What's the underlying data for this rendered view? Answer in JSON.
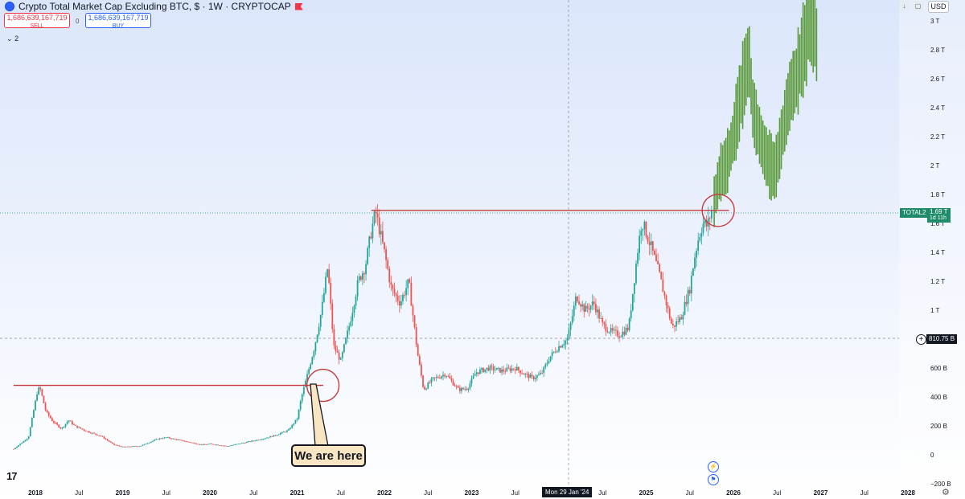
{
  "header": {
    "title": "Crypto Total Market Cap Excluding BTC, $ · 1W · CRYPTOCAP",
    "sell_price": "1,686,639,167,719",
    "sell_label": "SELL",
    "buy_price": "1,686,639,167,719",
    "buy_label": "BUY",
    "spread": "0",
    "indicator_count": "2",
    "currency": "USD"
  },
  "tags": {
    "symbol": "TOTAL2",
    "last_price": "1.69 T",
    "countdown": "1d 11h",
    "crosshair_price": "810.75 B",
    "crosshair_date": "Mon 29 Jan '24"
  },
  "annotation": {
    "callout": "We are here"
  },
  "branding": {
    "logo": "17"
  },
  "colors": {
    "up": "#26a69a",
    "down": "#ef5350",
    "projection": "#5a9a3a",
    "level_line": "#c53b3b",
    "circle": "#c53b3b"
  },
  "chart_data": {
    "type": "candlestick",
    "title": "Crypto Total Market Cap Excluding BTC, $ · 1W · CRYPTOCAP",
    "xlabel": "",
    "ylabel": "",
    "x_ticks": [
      "2018",
      "Jul",
      "2019",
      "Jul",
      "2020",
      "Jul",
      "2021",
      "Jul",
      "2022",
      "Jul",
      "2023",
      "Jul",
      "2024",
      "Jul",
      "2025",
      "Jul",
      "2026",
      "Jul",
      "2027",
      "Jul",
      "2028"
    ],
    "y_ticks": [
      "−200 B",
      "0",
      "200 B",
      "400 B",
      "600 B",
      "800 B",
      "1 T",
      "1.2 T",
      "1.4 T",
      "1.6 T",
      "1.8 T",
      "2 T",
      "2.2 T",
      "2.4 T",
      "2.6 T",
      "2.8 T",
      "3 T"
    ],
    "y_range_billions": [
      -200,
      3100
    ],
    "x_range_years": [
      2017.7,
      2028.3
    ],
    "series": [
      {
        "kind": "historical_weekly_candles",
        "points": [
          {
            "date": 2017.75,
            "value": 40
          },
          {
            "date": 2017.92,
            "value": 120
          },
          {
            "date": 2018.02,
            "value": 430
          },
          {
            "date": 2018.05,
            "value": 470
          },
          {
            "date": 2018.12,
            "value": 300
          },
          {
            "date": 2018.2,
            "value": 230
          },
          {
            "date": 2018.3,
            "value": 180
          },
          {
            "date": 2018.38,
            "value": 240
          },
          {
            "date": 2018.45,
            "value": 200
          },
          {
            "date": 2018.6,
            "value": 160
          },
          {
            "date": 2018.75,
            "value": 130
          },
          {
            "date": 2018.9,
            "value": 70
          },
          {
            "date": 2019.0,
            "value": 55
          },
          {
            "date": 2019.2,
            "value": 60
          },
          {
            "date": 2019.4,
            "value": 110
          },
          {
            "date": 2019.5,
            "value": 120
          },
          {
            "date": 2019.7,
            "value": 95
          },
          {
            "date": 2019.9,
            "value": 70
          },
          {
            "date": 2020.0,
            "value": 75
          },
          {
            "date": 2020.2,
            "value": 60
          },
          {
            "date": 2020.4,
            "value": 85
          },
          {
            "date": 2020.6,
            "value": 110
          },
          {
            "date": 2020.75,
            "value": 135
          },
          {
            "date": 2020.9,
            "value": 170
          },
          {
            "date": 2021.0,
            "value": 250
          },
          {
            "date": 2021.05,
            "value": 400
          },
          {
            "date": 2021.12,
            "value": 560
          },
          {
            "date": 2021.2,
            "value": 750
          },
          {
            "date": 2021.28,
            "value": 1000
          },
          {
            "date": 2021.35,
            "value": 1300
          },
          {
            "date": 2021.42,
            "value": 750
          },
          {
            "date": 2021.5,
            "value": 650
          },
          {
            "date": 2021.6,
            "value": 900
          },
          {
            "date": 2021.7,
            "value": 1200
          },
          {
            "date": 2021.78,
            "value": 1300
          },
          {
            "date": 2021.85,
            "value": 1550
          },
          {
            "date": 2021.9,
            "value": 1680
          },
          {
            "date": 2022.0,
            "value": 1400
          },
          {
            "date": 2022.08,
            "value": 1150
          },
          {
            "date": 2022.18,
            "value": 1050
          },
          {
            "date": 2022.28,
            "value": 1200
          },
          {
            "date": 2022.38,
            "value": 700
          },
          {
            "date": 2022.45,
            "value": 450
          },
          {
            "date": 2022.55,
            "value": 520
          },
          {
            "date": 2022.7,
            "value": 560
          },
          {
            "date": 2022.85,
            "value": 450
          },
          {
            "date": 2022.95,
            "value": 460
          },
          {
            "date": 2023.05,
            "value": 570
          },
          {
            "date": 2023.2,
            "value": 600
          },
          {
            "date": 2023.35,
            "value": 580
          },
          {
            "date": 2023.5,
            "value": 600
          },
          {
            "date": 2023.6,
            "value": 560
          },
          {
            "date": 2023.7,
            "value": 530
          },
          {
            "date": 2023.8,
            "value": 560
          },
          {
            "date": 2023.9,
            "value": 680
          },
          {
            "date": 2024.0,
            "value": 750
          },
          {
            "date": 2024.1,
            "value": 800
          },
          {
            "date": 2024.2,
            "value": 1100
          },
          {
            "date": 2024.3,
            "value": 1000
          },
          {
            "date": 2024.4,
            "value": 1050
          },
          {
            "date": 2024.5,
            "value": 900
          },
          {
            "date": 2024.6,
            "value": 850
          },
          {
            "date": 2024.7,
            "value": 830
          },
          {
            "date": 2024.8,
            "value": 880
          },
          {
            "date": 2024.9,
            "value": 1400
          },
          {
            "date": 2024.95,
            "value": 1620
          },
          {
            "date": 2025.05,
            "value": 1450
          },
          {
            "date": 2025.15,
            "value": 1250
          },
          {
            "date": 2025.25,
            "value": 1000
          },
          {
            "date": 2025.3,
            "value": 880
          },
          {
            "date": 2025.4,
            "value": 950
          },
          {
            "date": 2025.5,
            "value": 1150
          },
          {
            "date": 2025.55,
            "value": 1350
          },
          {
            "date": 2025.6,
            "value": 1500
          },
          {
            "date": 2025.65,
            "value": 1600
          },
          {
            "date": 2025.7,
            "value": 1580
          },
          {
            "date": 2025.75,
            "value": 1690
          }
        ]
      },
      {
        "kind": "projection_bars",
        "color": "green",
        "points": [
          {
            "date": 2025.78,
            "value": 1750
          },
          {
            "date": 2025.85,
            "value": 1950
          },
          {
            "date": 2025.92,
            "value": 2000
          },
          {
            "date": 2026.0,
            "value": 2200
          },
          {
            "date": 2026.06,
            "value": 2400
          },
          {
            "date": 2026.12,
            "value": 2600
          },
          {
            "date": 2026.18,
            "value": 2750
          },
          {
            "date": 2026.22,
            "value": 2400
          },
          {
            "date": 2026.28,
            "value": 2250
          },
          {
            "date": 2026.35,
            "value": 2100
          },
          {
            "date": 2026.42,
            "value": 2000
          },
          {
            "date": 2026.48,
            "value": 1960
          },
          {
            "date": 2026.54,
            "value": 2150
          },
          {
            "date": 2026.6,
            "value": 2350
          },
          {
            "date": 2026.66,
            "value": 2520
          },
          {
            "date": 2026.72,
            "value": 2600
          },
          {
            "date": 2026.78,
            "value": 2750
          },
          {
            "date": 2026.84,
            "value": 2900
          },
          {
            "date": 2026.88,
            "value": 3050
          },
          {
            "date": 2026.93,
            "value": 2950
          },
          {
            "date": 2026.97,
            "value": 2750
          }
        ]
      }
    ],
    "annotations": [
      {
        "kind": "horizontal_level",
        "value": 480,
        "from": 2017.75,
        "to": 2021.3
      },
      {
        "kind": "horizontal_level",
        "value": 1690,
        "from": 2021.85,
        "to": 2025.95
      },
      {
        "kind": "circle",
        "date": 2021.25,
        "value": 480
      },
      {
        "kind": "circle",
        "date": 2025.78,
        "value": 1690
      },
      {
        "kind": "callout",
        "text": "We are here"
      }
    ],
    "last_value": "1.69 T",
    "crosshair_value": "810.75 B",
    "crosshair_date": "Mon 29 Jan '24",
    "grid": false,
    "legend": "none"
  }
}
